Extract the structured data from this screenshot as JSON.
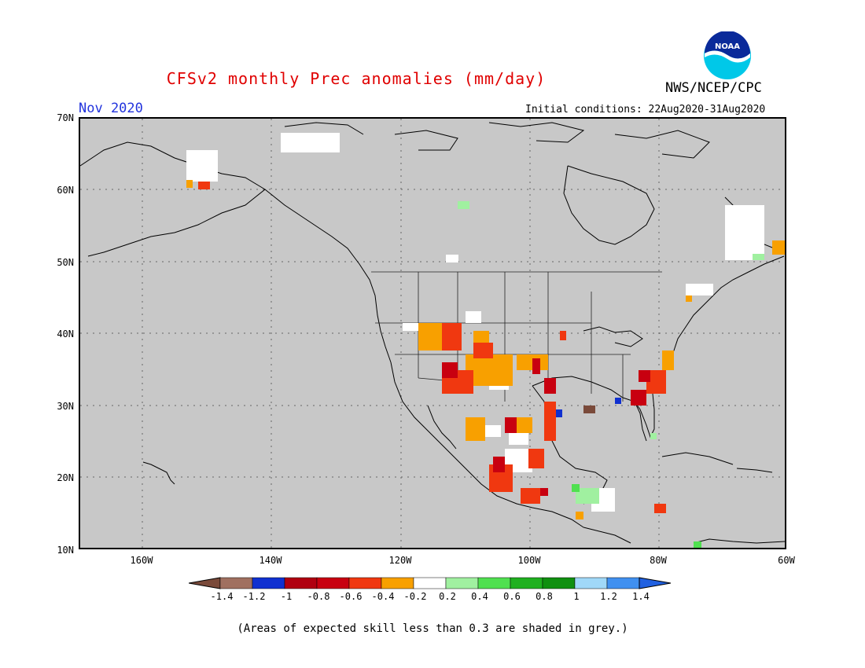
{
  "header": {
    "title": "CFSv2 monthly Prec anomalies (mm/day)",
    "org": "NWS/NCEP/CPC",
    "logo_text": "NOAA",
    "month": "Nov 2020",
    "init_conditions": "Initial conditions: 22Aug2020-31Aug2020"
  },
  "axes": {
    "lat_labels": [
      "70N",
      "60N",
      "50N",
      "40N",
      "30N",
      "20N",
      "10N"
    ],
    "lon_labels": [
      "160W",
      "140W",
      "120W",
      "100W",
      "80W",
      "60W"
    ]
  },
  "colorbar": {
    "labels": [
      "-1.4",
      "-1.2",
      "-1",
      "-0.8",
      "-0.6",
      "-0.4",
      "-0.2",
      "0.2",
      "0.4",
      "0.6",
      "0.8",
      "1",
      "1.2",
      "1.4"
    ],
    "colors": [
      "#7a4a3a",
      "#a07060",
      "#1030d0",
      "#b00010",
      "#c80010",
      "#f03810",
      "#f8a000",
      "#ffffff",
      "#a0f0a0",
      "#50e050",
      "#20b020",
      "#109010",
      "#a0d8f8",
      "#4090f0",
      "#2060e0"
    ]
  },
  "map": {
    "ocean_land_color": "#c8c8c8",
    "anomaly_regions": [
      {
        "region": "Southwest US",
        "category": "-0.4",
        "color": "#f8a000"
      },
      {
        "region": "Arizona / New Mexico",
        "category": "-0.6",
        "color": "#f03810"
      },
      {
        "region": "Texas",
        "category": "-0.8",
        "color": "#c80010"
      },
      {
        "region": "Mexico west coast",
        "category": "-0.6",
        "color": "#f03810"
      },
      {
        "region": "Southeast US coast",
        "category": "-0.8",
        "color": "#c80010"
      },
      {
        "region": "Alaska south coast",
        "category": "-0.6",
        "color": "#f03810"
      },
      {
        "region": "Central America",
        "category": "0.4",
        "color": "#a0f0a0"
      }
    ]
  },
  "footer": {
    "note": "(Areas of expected skill less than 0.3 are shaded in grey.)"
  }
}
